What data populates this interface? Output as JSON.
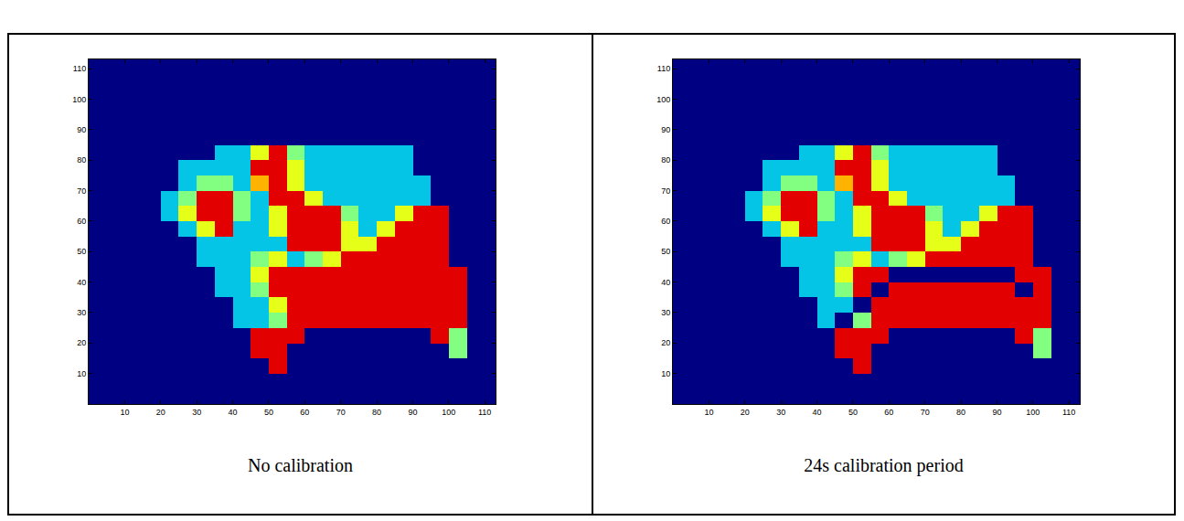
{
  "chart_data": [
    {
      "type": "heatmap",
      "title": "No calibration",
      "x": [
        2.5,
        7.5,
        12.5,
        17.5,
        22.5,
        27.5,
        32.5,
        37.5,
        42.5,
        47.5,
        52.5,
        57.5,
        62.5,
        67.5,
        72.5,
        77.5,
        82.5,
        87.5,
        92.5,
        97.5,
        102.5,
        107.5,
        112.5
      ],
      "y": [
        2.5,
        7.5,
        12.5,
        17.5,
        22.5,
        27.5,
        32.5,
        37.5,
        42.5,
        47.5,
        52.5,
        57.5,
        62.5,
        67.5,
        72.5,
        77.5,
        82.5,
        87.5,
        92.5,
        97.5,
        102.5,
        107.5,
        112.5
      ],
      "z": [
        [
          0,
          0,
          0,
          0,
          0,
          0,
          0,
          0,
          0,
          0,
          0,
          0,
          0,
          0,
          0,
          0,
          0,
          0,
          0,
          0,
          0,
          0,
          0
        ],
        [
          0,
          0,
          0,
          0,
          0,
          0,
          0,
          0,
          0,
          0,
          0,
          0,
          0,
          0,
          0,
          0,
          0,
          0,
          0,
          0,
          0,
          0,
          0
        ],
        [
          0,
          0,
          0,
          0,
          0,
          0,
          0,
          0,
          0,
          0,
          9,
          0,
          0,
          0,
          0,
          0,
          0,
          0,
          0,
          0,
          0,
          0,
          0
        ],
        [
          0,
          0,
          0,
          0,
          0,
          0,
          0,
          0,
          0,
          9,
          9,
          0,
          0,
          0,
          0,
          0,
          0,
          0,
          0,
          0,
          5,
          0,
          0
        ],
        [
          0,
          0,
          0,
          0,
          0,
          0,
          0,
          0,
          0,
          9,
          9,
          9,
          0,
          0,
          0,
          0,
          0,
          0,
          0,
          9,
          5,
          0,
          0
        ],
        [
          0,
          0,
          0,
          0,
          0,
          0,
          0,
          0,
          3,
          3,
          5,
          9,
          9,
          9,
          9,
          9,
          9,
          9,
          9,
          9,
          9,
          0,
          0
        ],
        [
          0,
          0,
          0,
          0,
          0,
          0,
          0,
          0,
          3,
          3,
          6,
          9,
          9,
          9,
          9,
          9,
          9,
          9,
          9,
          9,
          9,
          0,
          0
        ],
        [
          0,
          0,
          0,
          0,
          0,
          0,
          0,
          3,
          3,
          5,
          9,
          9,
          9,
          9,
          9,
          9,
          9,
          9,
          9,
          9,
          9,
          0,
          0
        ],
        [
          0,
          0,
          0,
          0,
          0,
          0,
          0,
          3,
          3,
          6,
          9,
          9,
          9,
          9,
          9,
          9,
          9,
          9,
          9,
          9,
          9,
          0,
          0
        ],
        [
          0,
          0,
          0,
          0,
          0,
          0,
          3,
          3,
          3,
          5,
          6,
          3,
          5,
          6,
          9,
          9,
          9,
          9,
          9,
          9,
          0,
          0,
          0
        ],
        [
          0,
          0,
          0,
          0,
          0,
          0,
          3,
          3,
          3,
          3,
          3,
          9,
          9,
          9,
          6,
          6,
          9,
          9,
          9,
          9,
          0,
          0,
          0
        ],
        [
          0,
          0,
          0,
          0,
          0,
          3,
          6,
          9,
          3,
          3,
          6,
          9,
          9,
          9,
          6,
          3,
          6,
          9,
          9,
          9,
          0,
          0,
          0
        ],
        [
          0,
          0,
          0,
          0,
          3,
          6,
          9,
          9,
          5,
          3,
          6,
          9,
          9,
          9,
          5,
          3,
          3,
          6,
          9,
          9,
          0,
          0,
          0
        ],
        [
          0,
          0,
          0,
          0,
          3,
          5,
          9,
          9,
          5,
          3,
          9,
          9,
          6,
          3,
          3,
          3,
          3,
          3,
          3,
          0,
          0,
          0,
          0
        ],
        [
          0,
          0,
          0,
          0,
          0,
          3,
          5,
          5,
          3,
          7,
          9,
          6,
          3,
          3,
          3,
          3,
          3,
          3,
          3,
          0,
          0,
          0,
          0
        ],
        [
          0,
          0,
          0,
          0,
          0,
          3,
          3,
          3,
          3,
          9,
          9,
          6,
          3,
          3,
          3,
          3,
          3,
          3,
          0,
          0,
          0,
          0,
          0
        ],
        [
          0,
          0,
          0,
          0,
          0,
          0,
          0,
          3,
          3,
          6,
          9,
          5,
          3,
          3,
          3,
          3,
          3,
          3,
          0,
          0,
          0,
          0,
          0
        ],
        [
          0,
          0,
          0,
          0,
          0,
          0,
          0,
          0,
          0,
          0,
          0,
          0,
          0,
          0,
          0,
          0,
          0,
          0,
          0,
          0,
          0,
          0,
          0
        ],
        [
          0,
          0,
          0,
          0,
          0,
          0,
          0,
          0,
          0,
          0,
          0,
          0,
          0,
          0,
          0,
          0,
          0,
          0,
          0,
          0,
          0,
          0,
          0
        ],
        [
          0,
          0,
          0,
          0,
          0,
          0,
          0,
          0,
          0,
          0,
          0,
          0,
          0,
          0,
          0,
          0,
          0,
          0,
          0,
          0,
          0,
          0,
          0
        ],
        [
          0,
          0,
          0,
          0,
          0,
          0,
          0,
          0,
          0,
          0,
          0,
          0,
          0,
          0,
          0,
          0,
          0,
          0,
          0,
          0,
          0,
          0,
          0
        ],
        [
          0,
          0,
          0,
          0,
          0,
          0,
          0,
          0,
          0,
          0,
          0,
          0,
          0,
          0,
          0,
          0,
          0,
          0,
          0,
          0,
          0,
          0,
          0
        ],
        [
          0,
          0,
          0,
          0,
          0,
          0,
          0,
          0,
          0,
          0,
          0,
          0,
          0,
          0,
          0,
          0,
          0,
          0,
          0,
          0,
          0,
          0,
          0
        ]
      ],
      "zlim": [
        0,
        10
      ],
      "xlim": [
        0,
        113
      ],
      "ylim": [
        0,
        113
      ],
      "xticks": [
        10,
        20,
        30,
        40,
        50,
        60,
        70,
        80,
        90,
        100,
        110
      ],
      "yticks": [
        10,
        20,
        30,
        40,
        50,
        60,
        70,
        80,
        90,
        100,
        110
      ]
    },
    {
      "type": "heatmap",
      "title": "24s calibration period",
      "x": [
        2.5,
        7.5,
        12.5,
        17.5,
        22.5,
        27.5,
        32.5,
        37.5,
        42.5,
        47.5,
        52.5,
        57.5,
        62.5,
        67.5,
        72.5,
        77.5,
        82.5,
        87.5,
        92.5,
        97.5,
        102.5,
        107.5,
        112.5
      ],
      "y": [
        2.5,
        7.5,
        12.5,
        17.5,
        22.5,
        27.5,
        32.5,
        37.5,
        42.5,
        47.5,
        52.5,
        57.5,
        62.5,
        67.5,
        72.5,
        77.5,
        82.5,
        87.5,
        92.5,
        97.5,
        102.5,
        107.5,
        112.5
      ],
      "z": [
        [
          0,
          0,
          0,
          0,
          0,
          0,
          0,
          0,
          0,
          0,
          0,
          0,
          0,
          0,
          0,
          0,
          0,
          0,
          0,
          0,
          0,
          0,
          0
        ],
        [
          0,
          0,
          0,
          0,
          0,
          0,
          0,
          0,
          0,
          0,
          0,
          0,
          0,
          0,
          0,
          0,
          0,
          0,
          0,
          0,
          0,
          0,
          0
        ],
        [
          0,
          0,
          0,
          0,
          0,
          0,
          0,
          0,
          0,
          0,
          9,
          0,
          0,
          0,
          0,
          0,
          0,
          0,
          0,
          0,
          0,
          0,
          0
        ],
        [
          0,
          0,
          0,
          0,
          0,
          0,
          0,
          0,
          0,
          9,
          9,
          0,
          0,
          0,
          0,
          0,
          0,
          0,
          0,
          0,
          5,
          0,
          0
        ],
        [
          0,
          0,
          0,
          0,
          0,
          0,
          0,
          0,
          0,
          9,
          9,
          9,
          0,
          0,
          0,
          0,
          0,
          0,
          0,
          9,
          5,
          0,
          0
        ],
        [
          0,
          0,
          0,
          0,
          0,
          0,
          0,
          0,
          3,
          0,
          5,
          9,
          9,
          9,
          9,
          9,
          9,
          9,
          9,
          9,
          9,
          0,
          0
        ],
        [
          0,
          0,
          0,
          0,
          0,
          0,
          0,
          0,
          3,
          3,
          0,
          9,
          9,
          9,
          9,
          9,
          9,
          9,
          9,
          9,
          9,
          0,
          0
        ],
        [
          0,
          0,
          0,
          0,
          0,
          0,
          0,
          3,
          3,
          5,
          9,
          0,
          9,
          9,
          9,
          9,
          9,
          9,
          9,
          0,
          9,
          0,
          0
        ],
        [
          0,
          0,
          0,
          0,
          0,
          0,
          0,
          3,
          3,
          6,
          9,
          9,
          0,
          0,
          0,
          0,
          0,
          0,
          0,
          9,
          9,
          0,
          0
        ],
        [
          0,
          0,
          0,
          0,
          0,
          0,
          3,
          3,
          3,
          5,
          6,
          3,
          5,
          6,
          9,
          9,
          9,
          9,
          9,
          9,
          0,
          0,
          0
        ],
        [
          0,
          0,
          0,
          0,
          0,
          0,
          3,
          3,
          3,
          3,
          3,
          9,
          9,
          9,
          6,
          6,
          9,
          9,
          9,
          9,
          0,
          0,
          0
        ],
        [
          0,
          0,
          0,
          0,
          0,
          3,
          6,
          9,
          3,
          3,
          6,
          9,
          9,
          9,
          6,
          3,
          6,
          9,
          9,
          9,
          0,
          0,
          0
        ],
        [
          0,
          0,
          0,
          0,
          3,
          6,
          9,
          9,
          5,
          3,
          6,
          9,
          9,
          9,
          5,
          3,
          3,
          6,
          9,
          9,
          0,
          0,
          0
        ],
        [
          0,
          0,
          0,
          0,
          3,
          5,
          9,
          9,
          5,
          3,
          9,
          9,
          6,
          3,
          3,
          3,
          3,
          3,
          3,
          0,
          0,
          0,
          0
        ],
        [
          0,
          0,
          0,
          0,
          0,
          3,
          5,
          5,
          3,
          7,
          9,
          6,
          3,
          3,
          3,
          3,
          3,
          3,
          3,
          0,
          0,
          0,
          0
        ],
        [
          0,
          0,
          0,
          0,
          0,
          3,
          3,
          3,
          3,
          9,
          9,
          6,
          3,
          3,
          3,
          3,
          3,
          3,
          0,
          0,
          0,
          0,
          0
        ],
        [
          0,
          0,
          0,
          0,
          0,
          0,
          0,
          3,
          3,
          6,
          9,
          5,
          3,
          3,
          3,
          3,
          3,
          3,
          0,
          0,
          0,
          0,
          0
        ],
        [
          0,
          0,
          0,
          0,
          0,
          0,
          0,
          0,
          0,
          0,
          0,
          0,
          0,
          0,
          0,
          0,
          0,
          0,
          0,
          0,
          0,
          0,
          0
        ],
        [
          0,
          0,
          0,
          0,
          0,
          0,
          0,
          0,
          0,
          0,
          0,
          0,
          0,
          0,
          0,
          0,
          0,
          0,
          0,
          0,
          0,
          0,
          0
        ],
        [
          0,
          0,
          0,
          0,
          0,
          0,
          0,
          0,
          0,
          0,
          0,
          0,
          0,
          0,
          0,
          0,
          0,
          0,
          0,
          0,
          0,
          0,
          0
        ],
        [
          0,
          0,
          0,
          0,
          0,
          0,
          0,
          0,
          0,
          0,
          0,
          0,
          0,
          0,
          0,
          0,
          0,
          0,
          0,
          0,
          0,
          0,
          0
        ],
        [
          0,
          0,
          0,
          0,
          0,
          0,
          0,
          0,
          0,
          0,
          0,
          0,
          0,
          0,
          0,
          0,
          0,
          0,
          0,
          0,
          0,
          0,
          0
        ],
        [
          0,
          0,
          0,
          0,
          0,
          0,
          0,
          0,
          0,
          0,
          0,
          0,
          0,
          0,
          0,
          0,
          0,
          0,
          0,
          0,
          0,
          0,
          0
        ]
      ],
      "zlim": [
        0,
        10
      ],
      "xlim": [
        0,
        113
      ],
      "ylim": [
        0,
        113
      ],
      "xticks": [
        10,
        20,
        30,
        40,
        50,
        60,
        70,
        80,
        90,
        100,
        110
      ],
      "yticks": [
        10,
        20,
        30,
        40,
        50,
        60,
        70,
        80,
        90,
        100,
        110
      ]
    }
  ]
}
